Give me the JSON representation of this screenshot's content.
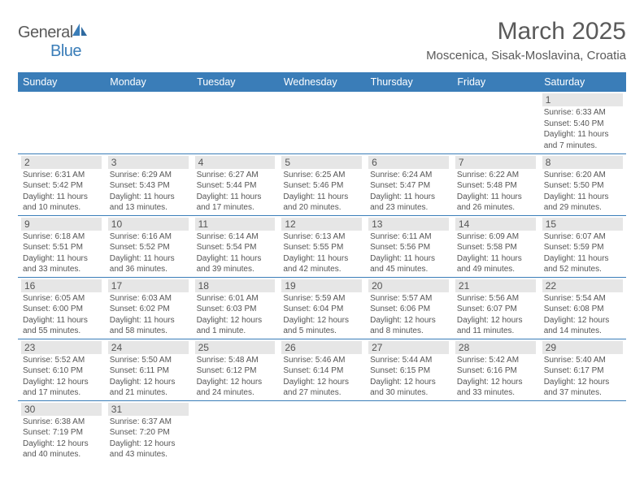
{
  "logo": {
    "text1": "General",
    "text2": "Blue"
  },
  "title": "March 2025",
  "location": "Moscenica, Sisak-Moslavina, Croatia",
  "colors": {
    "accent": "#3a7db8",
    "dayHeaderBg": "#e6e6e6",
    "text": "#555555",
    "bg": "#ffffff"
  },
  "weekdays": [
    "Sunday",
    "Monday",
    "Tuesday",
    "Wednesday",
    "Thursday",
    "Friday",
    "Saturday"
  ],
  "cells": [
    {
      "n": "",
      "sr": "",
      "ss": "",
      "dl": ""
    },
    {
      "n": "",
      "sr": "",
      "ss": "",
      "dl": ""
    },
    {
      "n": "",
      "sr": "",
      "ss": "",
      "dl": ""
    },
    {
      "n": "",
      "sr": "",
      "ss": "",
      "dl": ""
    },
    {
      "n": "",
      "sr": "",
      "ss": "",
      "dl": ""
    },
    {
      "n": "",
      "sr": "",
      "ss": "",
      "dl": ""
    },
    {
      "n": "1",
      "sr": "Sunrise: 6:33 AM",
      "ss": "Sunset: 5:40 PM",
      "dl": "Daylight: 11 hours and 7 minutes."
    },
    {
      "n": "2",
      "sr": "Sunrise: 6:31 AM",
      "ss": "Sunset: 5:42 PM",
      "dl": "Daylight: 11 hours and 10 minutes."
    },
    {
      "n": "3",
      "sr": "Sunrise: 6:29 AM",
      "ss": "Sunset: 5:43 PM",
      "dl": "Daylight: 11 hours and 13 minutes."
    },
    {
      "n": "4",
      "sr": "Sunrise: 6:27 AM",
      "ss": "Sunset: 5:44 PM",
      "dl": "Daylight: 11 hours and 17 minutes."
    },
    {
      "n": "5",
      "sr": "Sunrise: 6:25 AM",
      "ss": "Sunset: 5:46 PM",
      "dl": "Daylight: 11 hours and 20 minutes."
    },
    {
      "n": "6",
      "sr": "Sunrise: 6:24 AM",
      "ss": "Sunset: 5:47 PM",
      "dl": "Daylight: 11 hours and 23 minutes."
    },
    {
      "n": "7",
      "sr": "Sunrise: 6:22 AM",
      "ss": "Sunset: 5:48 PM",
      "dl": "Daylight: 11 hours and 26 minutes."
    },
    {
      "n": "8",
      "sr": "Sunrise: 6:20 AM",
      "ss": "Sunset: 5:50 PM",
      "dl": "Daylight: 11 hours and 29 minutes."
    },
    {
      "n": "9",
      "sr": "Sunrise: 6:18 AM",
      "ss": "Sunset: 5:51 PM",
      "dl": "Daylight: 11 hours and 33 minutes."
    },
    {
      "n": "10",
      "sr": "Sunrise: 6:16 AM",
      "ss": "Sunset: 5:52 PM",
      "dl": "Daylight: 11 hours and 36 minutes."
    },
    {
      "n": "11",
      "sr": "Sunrise: 6:14 AM",
      "ss": "Sunset: 5:54 PM",
      "dl": "Daylight: 11 hours and 39 minutes."
    },
    {
      "n": "12",
      "sr": "Sunrise: 6:13 AM",
      "ss": "Sunset: 5:55 PM",
      "dl": "Daylight: 11 hours and 42 minutes."
    },
    {
      "n": "13",
      "sr": "Sunrise: 6:11 AM",
      "ss": "Sunset: 5:56 PM",
      "dl": "Daylight: 11 hours and 45 minutes."
    },
    {
      "n": "14",
      "sr": "Sunrise: 6:09 AM",
      "ss": "Sunset: 5:58 PM",
      "dl": "Daylight: 11 hours and 49 minutes."
    },
    {
      "n": "15",
      "sr": "Sunrise: 6:07 AM",
      "ss": "Sunset: 5:59 PM",
      "dl": "Daylight: 11 hours and 52 minutes."
    },
    {
      "n": "16",
      "sr": "Sunrise: 6:05 AM",
      "ss": "Sunset: 6:00 PM",
      "dl": "Daylight: 11 hours and 55 minutes."
    },
    {
      "n": "17",
      "sr": "Sunrise: 6:03 AM",
      "ss": "Sunset: 6:02 PM",
      "dl": "Daylight: 11 hours and 58 minutes."
    },
    {
      "n": "18",
      "sr": "Sunrise: 6:01 AM",
      "ss": "Sunset: 6:03 PM",
      "dl": "Daylight: 12 hours and 1 minute."
    },
    {
      "n": "19",
      "sr": "Sunrise: 5:59 AM",
      "ss": "Sunset: 6:04 PM",
      "dl": "Daylight: 12 hours and 5 minutes."
    },
    {
      "n": "20",
      "sr": "Sunrise: 5:57 AM",
      "ss": "Sunset: 6:06 PM",
      "dl": "Daylight: 12 hours and 8 minutes."
    },
    {
      "n": "21",
      "sr": "Sunrise: 5:56 AM",
      "ss": "Sunset: 6:07 PM",
      "dl": "Daylight: 12 hours and 11 minutes."
    },
    {
      "n": "22",
      "sr": "Sunrise: 5:54 AM",
      "ss": "Sunset: 6:08 PM",
      "dl": "Daylight: 12 hours and 14 minutes."
    },
    {
      "n": "23",
      "sr": "Sunrise: 5:52 AM",
      "ss": "Sunset: 6:10 PM",
      "dl": "Daylight: 12 hours and 17 minutes."
    },
    {
      "n": "24",
      "sr": "Sunrise: 5:50 AM",
      "ss": "Sunset: 6:11 PM",
      "dl": "Daylight: 12 hours and 21 minutes."
    },
    {
      "n": "25",
      "sr": "Sunrise: 5:48 AM",
      "ss": "Sunset: 6:12 PM",
      "dl": "Daylight: 12 hours and 24 minutes."
    },
    {
      "n": "26",
      "sr": "Sunrise: 5:46 AM",
      "ss": "Sunset: 6:14 PM",
      "dl": "Daylight: 12 hours and 27 minutes."
    },
    {
      "n": "27",
      "sr": "Sunrise: 5:44 AM",
      "ss": "Sunset: 6:15 PM",
      "dl": "Daylight: 12 hours and 30 minutes."
    },
    {
      "n": "28",
      "sr": "Sunrise: 5:42 AM",
      "ss": "Sunset: 6:16 PM",
      "dl": "Daylight: 12 hours and 33 minutes."
    },
    {
      "n": "29",
      "sr": "Sunrise: 5:40 AM",
      "ss": "Sunset: 6:17 PM",
      "dl": "Daylight: 12 hours and 37 minutes."
    },
    {
      "n": "30",
      "sr": "Sunrise: 6:38 AM",
      "ss": "Sunset: 7:19 PM",
      "dl": "Daylight: 12 hours and 40 minutes."
    },
    {
      "n": "31",
      "sr": "Sunrise: 6:37 AM",
      "ss": "Sunset: 7:20 PM",
      "dl": "Daylight: 12 hours and 43 minutes."
    },
    {
      "n": "",
      "sr": "",
      "ss": "",
      "dl": ""
    },
    {
      "n": "",
      "sr": "",
      "ss": "",
      "dl": ""
    },
    {
      "n": "",
      "sr": "",
      "ss": "",
      "dl": ""
    },
    {
      "n": "",
      "sr": "",
      "ss": "",
      "dl": ""
    },
    {
      "n": "",
      "sr": "",
      "ss": "",
      "dl": ""
    }
  ]
}
